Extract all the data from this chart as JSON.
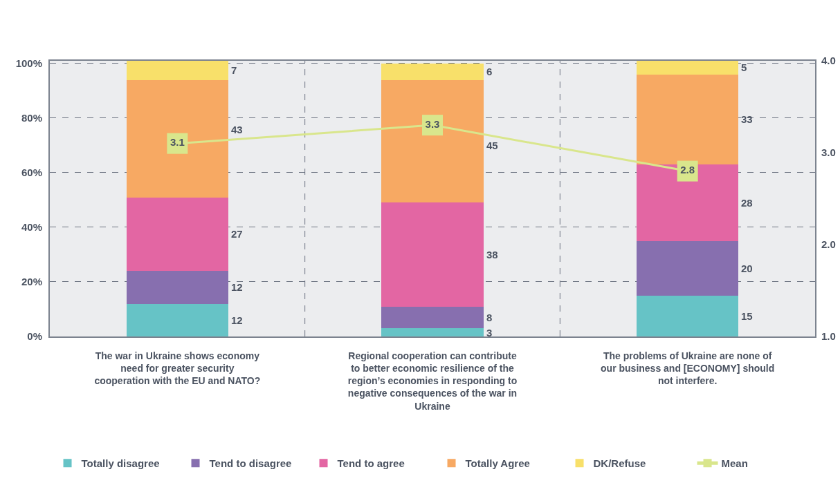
{
  "chart_data": {
    "type": "bar",
    "stacked": true,
    "categories": [
      "The war in Ukraine shows economy need for greater security cooperation with the EU and NATO?",
      "Regional cooperation can contribute to better economic resilience of the region’s economies in responding to negative consequences of the war in Ukraine",
      "The problems of Ukraine are none of our business and [ECONOMY] should not interfere."
    ],
    "series": [
      {
        "name": "Totally disagree",
        "color": "#66c3c6",
        "values": [
          12,
          3,
          15
        ]
      },
      {
        "name": "Tend to disagree",
        "color": "#876faf",
        "values": [
          12,
          8,
          20
        ]
      },
      {
        "name": "Tend to agree",
        "color": "#e366a3",
        "values": [
          27,
          38,
          28
        ]
      },
      {
        "name": "Totally Agree",
        "color": "#f7a963",
        "values": [
          43,
          45,
          33
        ]
      },
      {
        "name": "DK/Refuse",
        "color": "#f8e06a",
        "values": [
          7,
          6,
          5
        ]
      },
      {
        "name": "Mean",
        "type": "line",
        "axis": "y2",
        "marker": "square",
        "color": "#d9e68c",
        "values": [
          3.1,
          3.3,
          2.8
        ]
      }
    ],
    "ylim": [
      0,
      101
    ],
    "yticks": [
      {
        "value": 0,
        "label": "0%"
      },
      {
        "value": 20,
        "label": "20%"
      },
      {
        "value": 40,
        "label": "40%"
      },
      {
        "value": 60,
        "label": "60%"
      },
      {
        "value": 80,
        "label": "80%"
      },
      {
        "value": 100,
        "label": "100%"
      }
    ],
    "y2lim": [
      1,
      4
    ],
    "y2ticks": [
      {
        "value": 1,
        "label": "1.0"
      },
      {
        "value": 2,
        "label": "2.0"
      },
      {
        "value": 3,
        "label": "3.0"
      },
      {
        "value": 4,
        "label": "4.0"
      }
    ],
    "grid": true,
    "data_labels": true,
    "legend": "bottom"
  }
}
